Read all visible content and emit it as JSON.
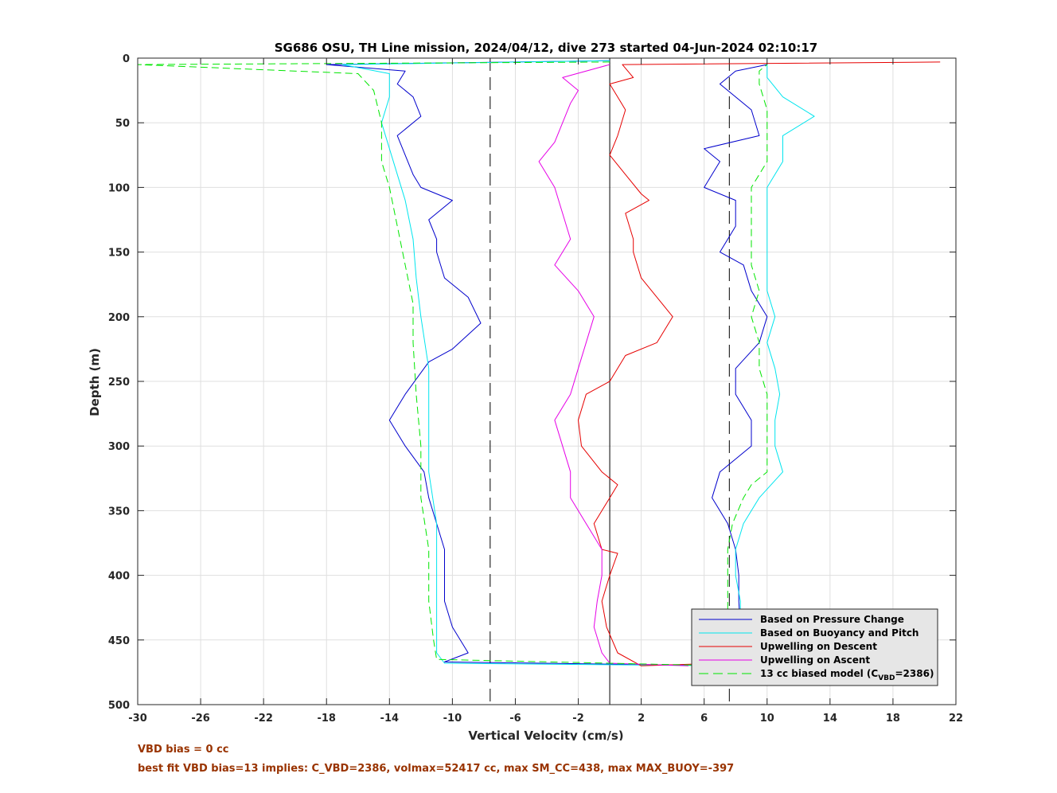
{
  "chart_data": {
    "type": "line",
    "title": "SG686 OSU, TH Line mission, 2024/04/12, dive 273 started 04-Jun-2024 02:10:17",
    "xlabel": "Vertical Velocity (cm/s)",
    "ylabel": "Depth (m)",
    "xlim": [
      -30,
      22
    ],
    "ylim": [
      0,
      500
    ],
    "y_reversed": true,
    "grid": true,
    "legend_position": "bottom-right",
    "xticks": [
      -30,
      -26,
      -22,
      -18,
      -14,
      -10,
      -6,
      -2,
      2,
      6,
      10,
      14,
      18,
      22
    ],
    "yticks": [
      0,
      50,
      100,
      150,
      200,
      250,
      300,
      350,
      400,
      450,
      500
    ],
    "xtick_labels": [
      "-30",
      "-26",
      "-22",
      "-18",
      "-14",
      "-10",
      "-6",
      "-2",
      "2",
      "6",
      "10",
      "14",
      "18",
      "22"
    ],
    "ytick_labels": [
      "0",
      "50",
      "100",
      "150",
      "200",
      "250",
      "300",
      "350",
      "400",
      "450",
      "500"
    ],
    "reference_lines": [
      {
        "x": 0,
        "style": "solid",
        "color": "#000000"
      },
      {
        "x": -7.6,
        "style": "dashed",
        "color": "#000000"
      },
      {
        "x": 7.6,
        "style": "dashed",
        "color": "#000000"
      }
    ],
    "series": [
      {
        "name": "Based on Pressure Change",
        "color": "#0000cc",
        "style": "solid",
        "points": [
          [
            0,
            2
          ],
          [
            -18,
            5
          ],
          [
            -13,
            10
          ],
          [
            -13.5,
            20
          ],
          [
            -12.5,
            30
          ],
          [
            -12,
            45
          ],
          [
            -13.5,
            60
          ],
          [
            -13,
            75
          ],
          [
            -12.5,
            90
          ],
          [
            -12,
            100
          ],
          [
            -10,
            110
          ],
          [
            -11.5,
            125
          ],
          [
            -11,
            140
          ],
          [
            -11,
            150
          ],
          [
            -10.5,
            170
          ],
          [
            -9,
            185
          ],
          [
            -8.2,
            205
          ],
          [
            -10,
            225
          ],
          [
            -11.5,
            235
          ],
          [
            -13,
            260
          ],
          [
            -14,
            280
          ],
          [
            -13,
            300
          ],
          [
            -11.8,
            320
          ],
          [
            -11.5,
            340
          ],
          [
            -11,
            360
          ],
          [
            -10.5,
            380
          ],
          [
            -10.5,
            400
          ],
          [
            -10.5,
            420
          ],
          [
            -10,
            440
          ],
          [
            -9,
            460
          ],
          [
            -10.5,
            467
          ],
          [
            8,
            470
          ],
          [
            8.5,
            460
          ],
          [
            8.3,
            440
          ],
          [
            8.2,
            420
          ],
          [
            8.2,
            400
          ],
          [
            8,
            380
          ],
          [
            7.5,
            360
          ],
          [
            6.5,
            340
          ],
          [
            7,
            320
          ],
          [
            9,
            300
          ],
          [
            9,
            280
          ],
          [
            8,
            260
          ],
          [
            8,
            240
          ],
          [
            9.5,
            220
          ],
          [
            10,
            200
          ],
          [
            9,
            180
          ],
          [
            8.5,
            160
          ],
          [
            7,
            150
          ],
          [
            8,
            130
          ],
          [
            8,
            110
          ],
          [
            6,
            100
          ],
          [
            7,
            80
          ],
          [
            6,
            70
          ],
          [
            9.5,
            60
          ],
          [
            9,
            40
          ],
          [
            7,
            20
          ],
          [
            8,
            10
          ],
          [
            10,
            5
          ]
        ]
      },
      {
        "name": "Based on Buoyancy and Pitch",
        "color": "#00e5ee",
        "style": "solid",
        "points": [
          [
            0,
            2
          ],
          [
            -17,
            5
          ],
          [
            -14,
            12
          ],
          [
            -14,
            30
          ],
          [
            -14.5,
            50
          ],
          [
            -14,
            70
          ],
          [
            -13.5,
            90
          ],
          [
            -13,
            110
          ],
          [
            -12.5,
            140
          ],
          [
            -12.3,
            170
          ],
          [
            -12,
            200
          ],
          [
            -11.5,
            240
          ],
          [
            -11.5,
            280
          ],
          [
            -11.5,
            320
          ],
          [
            -11,
            360
          ],
          [
            -11,
            400
          ],
          [
            -11,
            440
          ],
          [
            -11,
            460
          ],
          [
            -10.5,
            468
          ],
          [
            8,
            470
          ],
          [
            8.5,
            460
          ],
          [
            8.3,
            440
          ],
          [
            8.3,
            420
          ],
          [
            8,
            400
          ],
          [
            8,
            380
          ],
          [
            8.5,
            360
          ],
          [
            9.5,
            340
          ],
          [
            11,
            320
          ],
          [
            10.5,
            300
          ],
          [
            10.5,
            280
          ],
          [
            10.8,
            260
          ],
          [
            10.5,
            240
          ],
          [
            10,
            220
          ],
          [
            10.5,
            200
          ],
          [
            10,
            180
          ],
          [
            10,
            160
          ],
          [
            10,
            140
          ],
          [
            10,
            120
          ],
          [
            10,
            100
          ],
          [
            11,
            80
          ],
          [
            11,
            60
          ],
          [
            13,
            45
          ],
          [
            11,
            30
          ],
          [
            10,
            15
          ],
          [
            10,
            5
          ]
        ]
      },
      {
        "name": "Upwelling on Descent",
        "color": "#e60000",
        "style": "solid",
        "points": [
          [
            21,
            3
          ],
          [
            0.8,
            5
          ],
          [
            1.5,
            15
          ],
          [
            0,
            20
          ],
          [
            0.5,
            30
          ],
          [
            1,
            40
          ],
          [
            0.5,
            60
          ],
          [
            0,
            75
          ],
          [
            1,
            90
          ],
          [
            2,
            105
          ],
          [
            2.5,
            110
          ],
          [
            1,
            120
          ],
          [
            1.5,
            140
          ],
          [
            1.5,
            150
          ],
          [
            2,
            170
          ],
          [
            3,
            185
          ],
          [
            4,
            200
          ],
          [
            3.5,
            210
          ],
          [
            3,
            220
          ],
          [
            1,
            230
          ],
          [
            0,
            250
          ],
          [
            -1.5,
            260
          ],
          [
            -2,
            280
          ],
          [
            -1.8,
            300
          ],
          [
            -0.5,
            320
          ],
          [
            0.5,
            330
          ],
          [
            0,
            340
          ],
          [
            -1,
            360
          ],
          [
            -0.5,
            380
          ],
          [
            0.5,
            383
          ],
          [
            0,
            400
          ],
          [
            -0.5,
            420
          ],
          [
            -0.2,
            440
          ],
          [
            0.5,
            460
          ],
          [
            2,
            470
          ],
          [
            7,
            468
          ]
        ]
      },
      {
        "name": "Upwelling on Ascent",
        "color": "#e600e6",
        "style": "solid",
        "points": [
          [
            0,
            5
          ],
          [
            -3,
            15
          ],
          [
            -2,
            25
          ],
          [
            -2.5,
            35
          ],
          [
            -3,
            50
          ],
          [
            -3.5,
            65
          ],
          [
            -4.5,
            80
          ],
          [
            -3.5,
            100
          ],
          [
            -3,
            120
          ],
          [
            -2.5,
            140
          ],
          [
            -3.5,
            160
          ],
          [
            -2,
            180
          ],
          [
            -1,
            200
          ],
          [
            -1.5,
            220
          ],
          [
            -2,
            240
          ],
          [
            -2.5,
            260
          ],
          [
            -3.5,
            280
          ],
          [
            -3,
            300
          ],
          [
            -2.5,
            320
          ],
          [
            -2.5,
            340
          ],
          [
            -1.5,
            360
          ],
          [
            -0.5,
            380
          ],
          [
            -0.5,
            400
          ],
          [
            -0.8,
            420
          ],
          [
            -1,
            440
          ],
          [
            -0.5,
            460
          ],
          [
            0,
            468
          ],
          [
            5,
            470
          ]
        ]
      },
      {
        "name": "13 cc biased model (C_VBD=2386)",
        "color": "#00e600",
        "style": "dashed",
        "points": [
          [
            0,
            3
          ],
          [
            -30,
            5
          ],
          [
            -16,
            12
          ],
          [
            -15,
            25
          ],
          [
            -14.5,
            50
          ],
          [
            -14.5,
            80
          ],
          [
            -14,
            100
          ],
          [
            -13.5,
            130
          ],
          [
            -13,
            160
          ],
          [
            -12.5,
            190
          ],
          [
            -12.5,
            220
          ],
          [
            -12.3,
            260
          ],
          [
            -12,
            300
          ],
          [
            -12,
            340
          ],
          [
            -11.5,
            380
          ],
          [
            -11.5,
            420
          ],
          [
            -11.2,
            450
          ],
          [
            -11,
            465
          ],
          [
            7.5,
            470
          ],
          [
            7.5,
            450
          ],
          [
            7.5,
            420
          ],
          [
            7.5,
            400
          ],
          [
            7.5,
            380
          ],
          [
            7.8,
            360
          ],
          [
            8.5,
            340
          ],
          [
            9,
            330
          ],
          [
            10,
            320
          ],
          [
            10,
            300
          ],
          [
            10,
            280
          ],
          [
            10,
            260
          ],
          [
            9.5,
            240
          ],
          [
            9.5,
            220
          ],
          [
            9,
            200
          ],
          [
            9.5,
            180
          ],
          [
            9,
            160
          ],
          [
            9,
            140
          ],
          [
            9,
            120
          ],
          [
            9,
            100
          ],
          [
            10,
            80
          ],
          [
            10,
            60
          ],
          [
            10,
            40
          ],
          [
            9.5,
            20
          ],
          [
            9.5,
            10
          ],
          [
            10,
            5
          ]
        ]
      }
    ],
    "legend": {
      "entries": [
        "Based on Pressure Change",
        "Based on Buoyancy and Pitch",
        "Upwelling on Descent",
        "Upwelling on Ascent",
        "13 cc biased model (C"
      ],
      "last_entry_subscript": "VBD",
      "last_entry_suffix": "=2386)"
    }
  },
  "notes": {
    "line1": "VBD bias = 0 cc",
    "line2": "best fit VBD bias=13 implies: C_VBD=2386, volmax=52417 cc, max SM_CC=438, max MAX_BUOY=-397"
  }
}
